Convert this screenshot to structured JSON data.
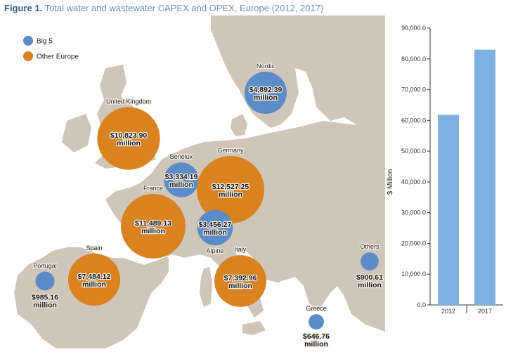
{
  "title": {
    "figure_label": "Figure 1.",
    "text": "Total water and wastewater CAPEX and OPEX, Europe (2012, 2017)"
  },
  "colors": {
    "big5": "#5b8cc8",
    "other_europe": "#d9821f",
    "land": "#cfc5b8",
    "sea": "#ffffff",
    "bar": "#7fb1e2"
  },
  "legend": [
    {
      "label": "Big 5",
      "color": "#5b8cc8"
    },
    {
      "label": "Other Europe",
      "color": "#d9821f"
    }
  ],
  "map_data": {
    "type": "bubble-map",
    "regions": [
      {
        "name": "Nordic",
        "value_label": "$4,892.39",
        "unit_label": "million",
        "group": "big5",
        "value": 4892.39
      },
      {
        "name": "United Kingdom",
        "value_label": "$10,823.90",
        "unit_label": "million",
        "group": "other",
        "value": 10823.9
      },
      {
        "name": "Benelux",
        "value_label": "$3,334.19",
        "unit_label": "million",
        "group": "big5",
        "value": 3334.19
      },
      {
        "name": "Germany",
        "value_label": "$12,527.25",
        "unit_label": "million",
        "group": "other",
        "value": 12527.25
      },
      {
        "name": "France",
        "value_label": "$11,489.13",
        "unit_label": "million",
        "group": "other",
        "value": 11489.13
      },
      {
        "name": "Alpine",
        "value_label": "$3,456.27",
        "unit_label": "million",
        "group": "big5",
        "value": 3456.27
      },
      {
        "name": "Spain",
        "value_label": "$7,484.12",
        "unit_label": "million",
        "group": "other",
        "value": 7484.12
      },
      {
        "name": "Italy",
        "value_label": "$7,392.96",
        "unit_label": "million",
        "group": "other",
        "value": 7392.96
      },
      {
        "name": "Portugal",
        "value_label": "$985.16",
        "unit_label": "million",
        "group": "big5",
        "value": 985.16
      },
      {
        "name": "Others",
        "value_label": "$900.61",
        "unit_label": "million",
        "group": "big5",
        "value": 900.61
      },
      {
        "name": "Greece",
        "value_label": "$646.76",
        "unit_label": "million",
        "group": "big5",
        "value": 646.76
      }
    ]
  },
  "chart_data": {
    "type": "bar",
    "categories": [
      "2012",
      "2017"
    ],
    "values": [
      61800,
      83000
    ],
    "ylabel": "$ Million",
    "ylim": [
      0,
      90000
    ],
    "yticks": [
      "0.0",
      "10,000.0",
      "20,000.0",
      "30,000.0",
      "40,000.0",
      "50,000.0",
      "60,000.0",
      "70,000.0",
      "80,000.0",
      "90,000.0"
    ],
    "grid": false
  }
}
